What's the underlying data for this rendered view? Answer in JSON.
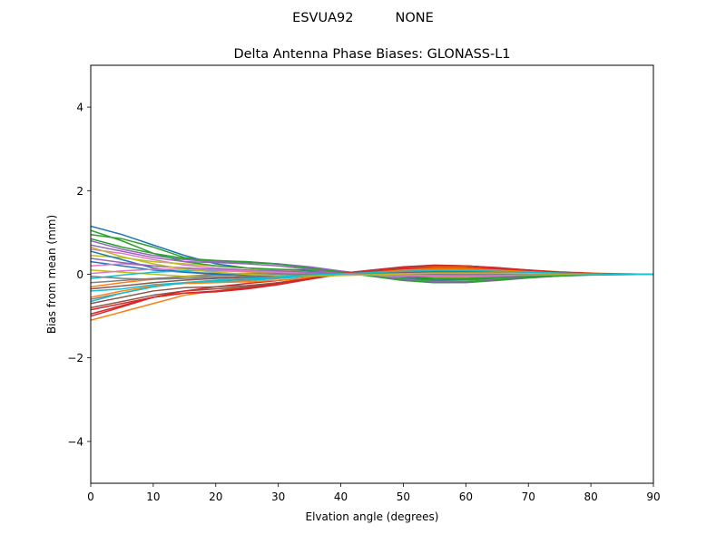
{
  "chart_data": {
    "type": "line",
    "suptitle": "ESVUA92          NONE",
    "title": "Delta Antenna Phase Biases: GLONASS-L1",
    "xlabel": "Elvation angle (degrees)",
    "ylabel": "Bias from mean (mm)",
    "xlim": [
      0,
      90
    ],
    "ylim": [
      -5,
      5
    ],
    "xticks": [
      0,
      10,
      20,
      30,
      40,
      50,
      60,
      70,
      80,
      90
    ],
    "yticks": [
      -4,
      -2,
      0,
      2,
      4
    ],
    "ytick_labels": [
      "−4",
      "−2",
      "0",
      "2",
      "4"
    ],
    "grid": false,
    "legend": "none",
    "palette": [
      "#1f77b4",
      "#ff7f0e",
      "#2ca02c",
      "#d62728",
      "#9467bd",
      "#8c564b",
      "#e377c2",
      "#7f7f7f",
      "#bcbd22",
      "#17becf"
    ],
    "x": [
      0,
      5,
      10,
      15,
      20,
      25,
      30,
      35,
      40,
      45,
      50,
      55,
      60,
      65,
      70,
      75,
      80,
      85,
      90
    ],
    "series": [
      {
        "values": [
          1.15,
          0.95,
          0.7,
          0.45,
          0.25,
          0.15,
          0.1,
          0.08,
          0.05,
          0.0,
          -0.08,
          -0.12,
          -0.12,
          -0.1,
          -0.07,
          -0.04,
          -0.02,
          -0.01,
          0.0
        ]
      },
      {
        "values": [
          -1.1,
          -0.9,
          -0.7,
          -0.5,
          -0.4,
          -0.3,
          -0.2,
          -0.1,
          0.0,
          0.05,
          0.12,
          0.18,
          0.18,
          0.14,
          0.1,
          0.06,
          0.03,
          0.01,
          0.0
        ]
      },
      {
        "values": [
          0.95,
          0.85,
          0.65,
          0.4,
          0.3,
          0.28,
          0.25,
          0.15,
          0.05,
          -0.02,
          -0.1,
          -0.15,
          -0.14,
          -0.1,
          -0.06,
          -0.03,
          -0.01,
          0.0,
          0.0
        ]
      },
      {
        "values": [
          -0.95,
          -0.75,
          -0.55,
          -0.45,
          -0.42,
          -0.35,
          -0.25,
          -0.12,
          0.0,
          0.08,
          0.15,
          0.2,
          0.2,
          0.16,
          0.1,
          0.05,
          0.02,
          0.01,
          0.0
        ]
      },
      {
        "values": [
          0.8,
          0.6,
          0.45,
          0.35,
          0.3,
          0.3,
          0.25,
          0.18,
          0.08,
          -0.02,
          -0.12,
          -0.18,
          -0.18,
          -0.12,
          -0.07,
          -0.03,
          -0.01,
          0.0,
          0.0
        ]
      },
      {
        "values": [
          -0.8,
          -0.65,
          -0.5,
          -0.4,
          -0.35,
          -0.3,
          -0.2,
          -0.1,
          0.02,
          0.1,
          0.18,
          0.22,
          0.2,
          0.15,
          0.09,
          0.05,
          0.02,
          0.0,
          0.0
        ]
      },
      {
        "values": [
          0.6,
          0.5,
          0.35,
          0.22,
          0.15,
          0.1,
          0.08,
          0.05,
          0.02,
          0.0,
          -0.05,
          -0.07,
          -0.07,
          -0.05,
          -0.03,
          -0.02,
          -0.01,
          0.0,
          0.0
        ]
      },
      {
        "values": [
          -0.6,
          -0.45,
          -0.3,
          -0.2,
          -0.15,
          -0.12,
          -0.08,
          -0.03,
          0.02,
          0.05,
          0.08,
          0.1,
          0.1,
          0.08,
          0.05,
          0.03,
          0.01,
          0.0,
          0.0
        ]
      },
      {
        "values": [
          0.45,
          0.4,
          0.3,
          0.25,
          0.2,
          0.15,
          0.1,
          0.05,
          0.0,
          -0.03,
          -0.06,
          -0.08,
          -0.08,
          -0.06,
          -0.04,
          -0.02,
          -0.01,
          0.0,
          0.0
        ]
      },
      {
        "values": [
          -0.4,
          -0.35,
          -0.25,
          -0.2,
          -0.18,
          -0.15,
          -0.1,
          -0.05,
          0.0,
          0.04,
          0.08,
          0.1,
          0.09,
          0.07,
          0.05,
          0.03,
          0.01,
          0.0,
          0.0
        ]
      },
      {
        "values": [
          0.3,
          0.2,
          0.1,
          0.05,
          0.02,
          0.0,
          -0.02,
          -0.02,
          0.0,
          0.02,
          0.04,
          0.05,
          0.05,
          0.04,
          0.03,
          0.01,
          0.0,
          0.0,
          0.0
        ]
      },
      {
        "values": [
          -0.3,
          -0.2,
          -0.12,
          -0.05,
          0.0,
          0.03,
          0.05,
          0.05,
          0.04,
          0.02,
          0.0,
          -0.02,
          -0.03,
          -0.02,
          -0.01,
          0.0,
          0.0,
          0.0,
          0.0
        ]
      },
      {
        "values": [
          1.05,
          0.8,
          0.5,
          0.3,
          0.2,
          0.15,
          0.12,
          0.1,
          0.06,
          0.02,
          -0.05,
          -0.1,
          -0.1,
          -0.08,
          -0.05,
          -0.03,
          -0.01,
          0.0,
          0.0
        ]
      },
      {
        "values": [
          -1.0,
          -0.78,
          -0.55,
          -0.4,
          -0.3,
          -0.22,
          -0.15,
          -0.08,
          0.0,
          0.06,
          0.12,
          0.15,
          0.15,
          0.12,
          0.08,
          0.04,
          0.02,
          0.0,
          0.0
        ]
      },
      {
        "values": [
          0.7,
          0.55,
          0.4,
          0.3,
          0.28,
          0.25,
          0.2,
          0.12,
          0.04,
          -0.04,
          -0.14,
          -0.2,
          -0.2,
          -0.15,
          -0.09,
          -0.04,
          -0.01,
          0.0,
          0.0
        ]
      },
      {
        "values": [
          -0.7,
          -0.55,
          -0.4,
          -0.32,
          -0.3,
          -0.27,
          -0.2,
          -0.1,
          0.0,
          0.08,
          0.16,
          0.21,
          0.2,
          0.15,
          0.09,
          0.05,
          0.02,
          0.0,
          0.0
        ]
      },
      {
        "values": [
          0.2,
          0.25,
          0.2,
          0.15,
          0.1,
          0.08,
          0.06,
          0.04,
          0.02,
          0.0,
          -0.02,
          -0.03,
          -0.03,
          -0.02,
          -0.01,
          0.0,
          0.0,
          0.0,
          0.0
        ]
      },
      {
        "values": [
          -0.2,
          -0.15,
          -0.1,
          -0.06,
          -0.03,
          0.0,
          0.02,
          0.03,
          0.03,
          0.02,
          0.01,
          0.0,
          -0.01,
          -0.01,
          -0.01,
          0.0,
          0.0,
          0.0,
          0.0
        ]
      },
      {
        "values": [
          0.1,
          0.05,
          0.0,
          -0.05,
          -0.08,
          -0.08,
          -0.06,
          -0.03,
          0.0,
          0.03,
          0.06,
          0.07,
          0.06,
          0.05,
          0.03,
          0.01,
          0.0,
          0.0,
          0.0
        ]
      },
      {
        "values": [
          -0.1,
          -0.02,
          0.05,
          0.08,
          0.08,
          0.07,
          0.05,
          0.02,
          0.0,
          -0.02,
          -0.04,
          -0.05,
          -0.05,
          -0.04,
          -0.02,
          -0.01,
          0.0,
          0.0,
          0.0
        ]
      },
      {
        "values": [
          0.55,
          0.35,
          0.15,
          0.05,
          0.0,
          -0.02,
          -0.03,
          -0.02,
          0.0,
          0.02,
          0.03,
          0.04,
          0.04,
          0.03,
          0.02,
          0.01,
          0.0,
          0.0,
          0.0
        ]
      },
      {
        "values": [
          -0.55,
          -0.4,
          -0.28,
          -0.22,
          -0.2,
          -0.18,
          -0.14,
          -0.08,
          -0.02,
          0.04,
          0.1,
          0.13,
          0.13,
          0.1,
          0.06,
          0.03,
          0.01,
          0.0,
          0.0
        ]
      },
      {
        "values": [
          0.85,
          0.65,
          0.5,
          0.38,
          0.33,
          0.3,
          0.24,
          0.15,
          0.05,
          -0.05,
          -0.15,
          -0.2,
          -0.19,
          -0.14,
          -0.08,
          -0.04,
          -0.01,
          0.0,
          0.0
        ]
      },
      {
        "values": [
          -0.85,
          -0.7,
          -0.55,
          -0.45,
          -0.4,
          -0.33,
          -0.22,
          -0.1,
          0.02,
          0.1,
          0.17,
          0.21,
          0.2,
          0.15,
          0.1,
          0.05,
          0.02,
          0.0,
          0.0
        ]
      },
      {
        "values": [
          0.38,
          0.28,
          0.2,
          0.15,
          0.12,
          0.1,
          0.08,
          0.05,
          0.02,
          -0.01,
          -0.04,
          -0.05,
          -0.05,
          -0.04,
          -0.02,
          -0.01,
          0.0,
          0.0,
          0.0
        ]
      },
      {
        "values": [
          -0.35,
          -0.28,
          -0.2,
          -0.14,
          -0.1,
          -0.07,
          -0.04,
          -0.01,
          0.01,
          0.03,
          0.05,
          0.06,
          0.06,
          0.05,
          0.03,
          0.02,
          0.0,
          0.0,
          0.0
        ]
      },
      {
        "values": [
          0.02,
          0.08,
          0.12,
          0.12,
          0.1,
          0.08,
          0.05,
          0.02,
          0.0,
          -0.02,
          -0.03,
          -0.04,
          -0.04,
          -0.03,
          -0.02,
          -0.01,
          0.0,
          0.0,
          0.0
        ]
      },
      {
        "values": [
          -0.05,
          -0.1,
          -0.12,
          -0.1,
          -0.07,
          -0.04,
          -0.01,
          0.01,
          0.02,
          0.02,
          0.02,
          0.02,
          0.02,
          0.01,
          0.01,
          0.0,
          0.0,
          0.0,
          0.0
        ]
      },
      {
        "values": [
          0.65,
          0.42,
          0.25,
          0.12,
          0.05,
          0.0,
          -0.03,
          -0.04,
          -0.03,
          -0.01,
          0.01,
          0.03,
          0.03,
          0.03,
          0.02,
          0.01,
          0.0,
          0.0,
          0.0
        ]
      },
      {
        "values": [
          -0.65,
          -0.45,
          -0.3,
          -0.2,
          -0.14,
          -0.1,
          -0.06,
          -0.02,
          0.01,
          0.04,
          0.07,
          0.09,
          0.09,
          0.07,
          0.05,
          0.03,
          0.01,
          0.0,
          0.0
        ]
      }
    ]
  }
}
